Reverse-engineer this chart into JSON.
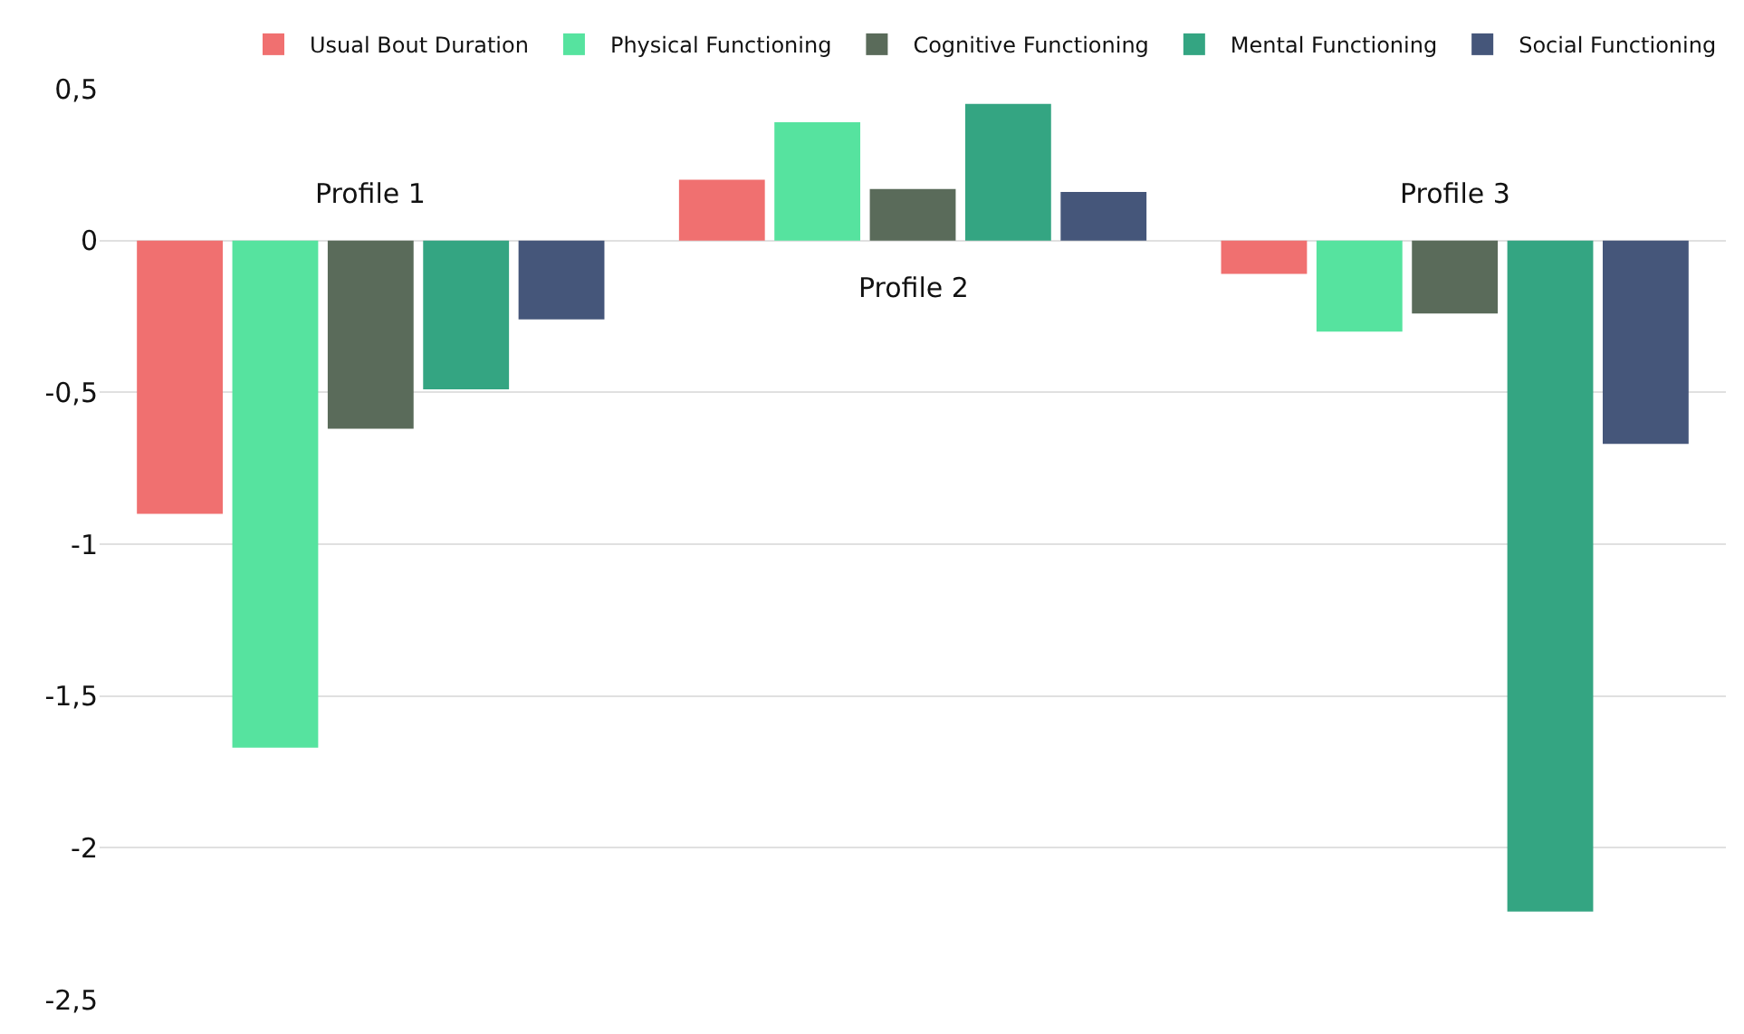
{
  "chart_data": {
    "type": "bar",
    "categories": [
      "Profile 1",
      "Profile 2",
      "Profile 3"
    ],
    "series": [
      {
        "name": "Usual Bout Duration",
        "color": "#f07070",
        "values": [
          -0.9,
          0.2,
          -0.11
        ]
      },
      {
        "name": "Physical Functioning",
        "color": "#56e39f",
        "values": [
          -1.67,
          0.39,
          -0.3
        ]
      },
      {
        "name": "Cognitive Functioning",
        "color": "#5a6b5a",
        "values": [
          -0.62,
          0.17,
          -0.24
        ]
      },
      {
        "name": "Mental Functioning",
        "color": "#34a582",
        "values": [
          -0.49,
          0.45,
          -2.21
        ]
      },
      {
        "name": "Social Functioning",
        "color": "#45567a",
        "values": [
          -0.26,
          0.16,
          -0.67
        ]
      }
    ],
    "ylim": [
      -2.5,
      0.5
    ],
    "yticks": [
      {
        "value": 0.5,
        "label": "0,5"
      },
      0,
      {
        "value": -0.5,
        "label": "-0,5"
      },
      -1,
      {
        "value": -1.5,
        "label": "-1,5"
      },
      -2,
      {
        "value": -2.5,
        "label": "-2,5"
      }
    ],
    "grid": "y",
    "legend": "top"
  }
}
